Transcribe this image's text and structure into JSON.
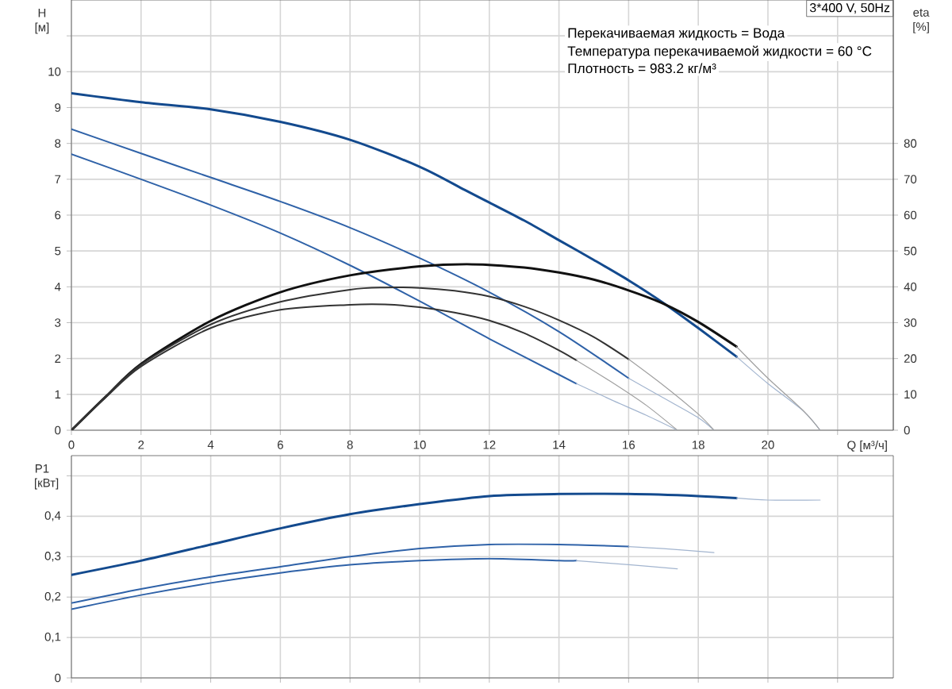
{
  "chart_data": [
    {
      "type": "line",
      "title": "3*400 V, 50Hz",
      "xlabel": "Q [м³/ч]",
      "ylabel": "H [м]",
      "y2label": "eta [%]",
      "annotations": [
        "Перекачиваемая жидкость = Вода",
        "Температура перекачиваемой жидкости = 60 °C",
        "Плотность = 983.2 кг/м³"
      ],
      "xlim": [
        0,
        23.6
      ],
      "xticks": [
        0,
        2,
        4,
        6,
        8,
        10,
        12,
        14,
        16,
        18,
        20,
        {
          "value": 22,
          "label": null
        }
      ],
      "ylim": [
        0,
        12
      ],
      "yticks": [
        0,
        1,
        2,
        3,
        4,
        5,
        6,
        7,
        8,
        9,
        10,
        {
          "value": 11,
          "label": null
        }
      ],
      "y2lim": [
        0,
        120
      ],
      "y2ticks": [
        0,
        10,
        20,
        30,
        40,
        50,
        60,
        70,
        80
      ],
      "grid": true,
      "series": [
        {
          "color": "#134a8e",
          "x": [
            0,
            2,
            4,
            6,
            8,
            10,
            11.3,
            12,
            13,
            14,
            15,
            16,
            17,
            18,
            19.1
          ],
          "values": [
            9.4,
            9.15,
            8.95,
            8.6,
            8.1,
            7.35,
            6.7,
            6.35,
            5.85,
            5.3,
            4.75,
            4.18,
            3.55,
            2.85,
            2.05
          ]
        },
        {
          "color": "#a3b5cf",
          "x": [
            19.1,
            20,
            21,
            21.5
          ],
          "values": [
            2.05,
            1.3,
            0.55,
            0
          ]
        },
        {
          "color": "#2f62a8",
          "x": [
            0,
            2,
            4,
            6,
            8,
            10,
            12,
            14,
            16
          ],
          "values": [
            8.4,
            7.72,
            7.05,
            6.38,
            5.65,
            4.8,
            3.85,
            2.75,
            1.45
          ]
        },
        {
          "color": "#a3b5cf",
          "x": [
            16,
            17,
            18,
            18.45
          ],
          "values": [
            1.45,
            0.9,
            0.35,
            0
          ]
        },
        {
          "color": "#2f62a8",
          "x": [
            0,
            2,
            4,
            6,
            8,
            10,
            12,
            14,
            14.5
          ],
          "values": [
            7.7,
            7.0,
            6.28,
            5.5,
            4.6,
            3.6,
            2.55,
            1.55,
            1.3
          ]
        },
        {
          "color": "#a3b5cf",
          "x": [
            14.5,
            15.5,
            16.5,
            17.4
          ],
          "values": [
            1.3,
            0.85,
            0.42,
            0
          ]
        },
        {
          "color": "#111111",
          "axis": "y2",
          "x": [
            0,
            1,
            2,
            4,
            6,
            8,
            10,
            11.5,
            13,
            14,
            15,
            16,
            17,
            18,
            19.1
          ],
          "values": [
            0,
            9.5,
            18.5,
            30.5,
            38.5,
            43.2,
            45.7,
            46.3,
            45.4,
            44,
            42,
            39,
            35.3,
            30.2,
            23.3
          ]
        },
        {
          "color": "#a0a0a0",
          "axis": "y2",
          "x": [
            19.1,
            20,
            21,
            21.5
          ],
          "values": [
            23.3,
            14.5,
            5.6,
            0
          ]
        },
        {
          "color": "#333333",
          "axis": "y2",
          "x": [
            0,
            1,
            2,
            4,
            6,
            8,
            9,
            10,
            11,
            12,
            13,
            14,
            15,
            16
          ],
          "values": [
            0,
            9.5,
            18.3,
            29.5,
            35.8,
            39.2,
            39.8,
            39.7,
            38.9,
            37.3,
            34.5,
            30.7,
            26,
            19.8
          ]
        },
        {
          "color": "#a0a0a0",
          "axis": "y2",
          "x": [
            16,
            17,
            18,
            18.45
          ],
          "values": [
            19.8,
            12.5,
            4.5,
            0
          ]
        },
        {
          "color": "#333333",
          "axis": "y2",
          "x": [
            0,
            1,
            2,
            4,
            6,
            8,
            9,
            10,
            11,
            12,
            13,
            14,
            14.5
          ],
          "values": [
            0,
            9.3,
            17.8,
            28.5,
            33.6,
            35,
            35.1,
            34.3,
            32.8,
            30.6,
            27.1,
            22.3,
            19.5
          ]
        },
        {
          "color": "#a0a0a0",
          "axis": "y2",
          "x": [
            14.5,
            15.5,
            16.5,
            17.4
          ],
          "values": [
            19.5,
            13.5,
            7,
            0
          ]
        }
      ]
    },
    {
      "type": "line",
      "ylabel": "P1 [кВт]",
      "xlim": [
        0,
        23.6
      ],
      "xticks": [
        0,
        2,
        4,
        6,
        8,
        10,
        12,
        14,
        16,
        18,
        20,
        22
      ],
      "ylim": [
        0,
        0.55
      ],
      "yticks": [
        0,
        {
          "value": 0.1,
          "label": "0,1"
        },
        {
          "value": 0.2,
          "label": "0,2"
        },
        {
          "value": 0.3,
          "label": "0,3"
        },
        {
          "value": 0.4,
          "label": "0,4"
        },
        {
          "value": 0.5,
          "label": null
        }
      ],
      "tick_labels": "y",
      "grid": true,
      "series": [
        {
          "color": "#134a8e",
          "x": [
            0,
            2,
            4,
            6,
            8,
            10,
            12,
            14,
            16,
            18,
            19.1
          ],
          "values": [
            0.255,
            0.29,
            0.33,
            0.37,
            0.405,
            0.43,
            0.45,
            0.455,
            0.455,
            0.45,
            0.445
          ]
        },
        {
          "color": "#a3b5cf",
          "x": [
            19.1,
            20,
            21.5
          ],
          "values": [
            0.445,
            0.44,
            0.44
          ]
        },
        {
          "color": "#2f62a8",
          "x": [
            0,
            2,
            4,
            6,
            8,
            10,
            12,
            14,
            16
          ],
          "values": [
            0.185,
            0.22,
            0.25,
            0.275,
            0.3,
            0.32,
            0.33,
            0.33,
            0.325
          ]
        },
        {
          "color": "#a3b5cf",
          "x": [
            16,
            17,
            18.45
          ],
          "values": [
            0.325,
            0.32,
            0.31
          ]
        },
        {
          "color": "#2f62a8",
          "x": [
            0,
            2,
            4,
            6,
            8,
            10,
            12,
            14,
            14.5
          ],
          "values": [
            0.17,
            0.205,
            0.235,
            0.26,
            0.28,
            0.29,
            0.295,
            0.29,
            0.29
          ]
        },
        {
          "color": "#a3b5cf",
          "x": [
            14.5,
            16,
            17.4
          ],
          "values": [
            0.29,
            0.28,
            0.27
          ]
        }
      ]
    }
  ]
}
